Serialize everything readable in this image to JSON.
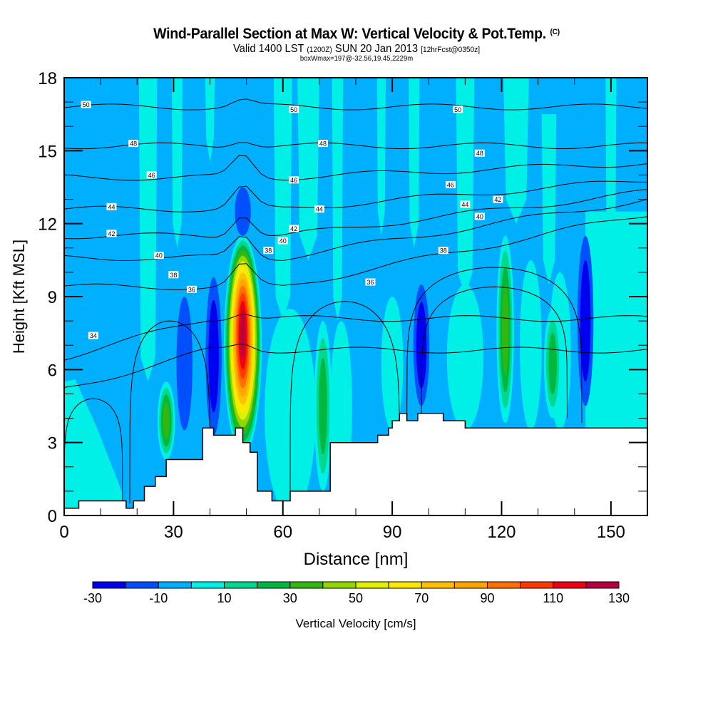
{
  "header": {
    "title": "Wind-Parallel Section at Max W: Vertical Velocity & Pot.Temp.",
    "copyright_mark": "(C)",
    "valid_prefix": "Valid 1400 LST",
    "valid_utc": "(1200Z)",
    "valid_date": "SUN 20 Jan 2013",
    "forecast_info": "[12hrFcst@0350z]",
    "box_info": "boxWmax=197@-32.56,19.45,2229m"
  },
  "chart_data": {
    "type": "heatmap",
    "title": "Wind-Parallel Section at Max W: Vertical Velocity & Pot.Temp.",
    "xlabel": "Distance [nm]",
    "ylabel": "Height [Kft MSL]",
    "xlim": [
      0,
      160
    ],
    "ylim": [
      0,
      18
    ],
    "x_ticks": [
      0,
      30,
      60,
      90,
      120,
      150
    ],
    "x_minor_step": 10,
    "y_ticks": [
      0,
      3,
      6,
      9,
      12,
      15,
      18
    ],
    "y_minor_step": 1,
    "colorbar": {
      "label": "Vertical Velocity [cm/s]",
      "placement": "bottom",
      "levels": [
        -30,
        -20,
        -10,
        0,
        10,
        20,
        30,
        40,
        50,
        60,
        70,
        80,
        90,
        100,
        110,
        120,
        130
      ],
      "tick_labels": [
        "-30",
        "-10",
        "10",
        "30",
        "50",
        "70",
        "90",
        "110",
        "130"
      ],
      "colors": [
        "#0000f0",
        "#0050ff",
        "#00b0ff",
        "#00f0e8",
        "#00d890",
        "#00b840",
        "#30b810",
        "#90d800",
        "#e0f000",
        "#ffe800",
        "#ffc000",
        "#ffa400",
        "#ff7000",
        "#ff3800",
        "#f00010",
        "#b80040"
      ]
    },
    "filled_field": {
      "name": "Vertical Velocity",
      "units": "cm/s",
      "background_bin": "-10 to 0",
      "features": [
        {
          "kind": "updraft-core",
          "x_center": 49,
          "z_bottom": 2.5,
          "z_top": 11.5,
          "max_value": 130,
          "peak_height": 7.5
        },
        {
          "kind": "downdraft",
          "x_center": 33,
          "z_bottom": 3.5,
          "z_top": 9,
          "min_value": -20
        },
        {
          "kind": "downdraft",
          "x_center": 41,
          "z_bottom": 3.3,
          "z_top": 9.8,
          "min_value": -30
        },
        {
          "kind": "downdraft",
          "x_center": 49,
          "z_bottom": 11.5,
          "z_top": 13.5,
          "min_value": -20
        },
        {
          "kind": "updraft",
          "x_center": 28,
          "z_bottom": 2.3,
          "z_top": 5.5,
          "max_value": 40
        },
        {
          "kind": "updraft",
          "x_center": 71,
          "z_bottom": 1,
          "z_top": 8,
          "max_value": 30
        },
        {
          "kind": "downdraft",
          "x_center": 98,
          "z_bottom": 4.5,
          "z_top": 9.5,
          "min_value": -30
        },
        {
          "kind": "updraft",
          "x_center": 121,
          "z_bottom": 3.8,
          "z_top": 11.5,
          "max_value": 40
        },
        {
          "kind": "updraft",
          "x_center": 134,
          "z_bottom": 4,
          "z_top": 8.5,
          "max_value": 30
        },
        {
          "kind": "downdraft",
          "x_center": 143,
          "z_bottom": 4.5,
          "z_top": 11.5,
          "min_value": -30
        }
      ]
    },
    "contours": {
      "name": "Potential Temperature",
      "levels": [
        34,
        36,
        38,
        40,
        42,
        44,
        46,
        48,
        50
      ],
      "labels": [
        {
          "text": "50",
          "x": 6,
          "z": 16.9
        },
        {
          "text": "50",
          "x": 63,
          "z": 16.7
        },
        {
          "text": "50",
          "x": 108,
          "z": 16.7
        },
        {
          "text": "48",
          "x": 19,
          "z": 15.3
        },
        {
          "text": "48",
          "x": 71,
          "z": 15.3
        },
        {
          "text": "48",
          "x": 114,
          "z": 14.9
        },
        {
          "text": "46",
          "x": 24,
          "z": 14.0
        },
        {
          "text": "46",
          "x": 63,
          "z": 13.8
        },
        {
          "text": "46",
          "x": 106,
          "z": 13.6
        },
        {
          "text": "44",
          "x": 13,
          "z": 12.7
        },
        {
          "text": "44",
          "x": 70,
          "z": 12.6
        },
        {
          "text": "44",
          "x": 110,
          "z": 12.8
        },
        {
          "text": "42",
          "x": 13,
          "z": 11.6
        },
        {
          "text": "42",
          "x": 63,
          "z": 11.8
        },
        {
          "text": "42",
          "x": 119,
          "z": 13.0
        },
        {
          "text": "40",
          "x": 26,
          "z": 10.7
        },
        {
          "text": "40",
          "x": 60,
          "z": 11.3
        },
        {
          "text": "40",
          "x": 114,
          "z": 12.3
        },
        {
          "text": "38",
          "x": 30,
          "z": 9.9
        },
        {
          "text": "38",
          "x": 56,
          "z": 10.9
        },
        {
          "text": "38",
          "x": 104,
          "z": 10.9
        },
        {
          "text": "36",
          "x": 35,
          "z": 9.3
        },
        {
          "text": "36",
          "x": 84,
          "z": 9.6
        },
        {
          "text": "34",
          "x": 8,
          "z": 7.4
        }
      ]
    },
    "terrain": {
      "x": [
        0,
        4,
        4,
        17,
        17,
        19,
        19,
        22,
        22,
        25,
        25,
        28,
        28,
        38,
        38,
        41,
        41,
        47,
        47,
        49,
        49,
        51,
        51,
        53,
        53,
        57,
        57,
        62,
        62,
        73,
        73,
        86,
        86,
        89,
        89,
        90,
        90,
        92,
        92,
        94,
        94,
        97,
        97,
        104,
        104,
        110,
        110,
        123,
        123,
        160
      ],
      "z": [
        0.3,
        0.3,
        0.6,
        0.6,
        0.3,
        0.3,
        0.6,
        0.6,
        1.2,
        1.2,
        1.6,
        1.6,
        2.3,
        2.3,
        3.6,
        3.6,
        3.3,
        3.3,
        3.6,
        3.6,
        3.0,
        3.0,
        2.6,
        2.6,
        1.0,
        1.0,
        0.6,
        0.6,
        1.0,
        1.0,
        3.0,
        3.0,
        3.3,
        3.3,
        3.6,
        3.6,
        3.9,
        3.9,
        4.2,
        4.2,
        3.9,
        3.9,
        4.2,
        4.2,
        3.9,
        3.9,
        3.6,
        3.6,
        3.6,
        3.6
      ]
    }
  }
}
